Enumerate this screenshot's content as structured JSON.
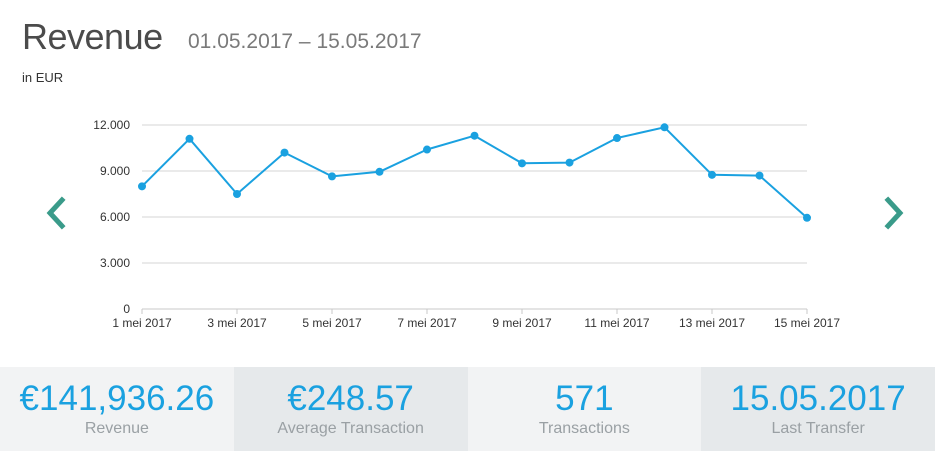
{
  "header": {
    "title": "Revenue",
    "date_range": "01.05.2017 – 15.05.2017",
    "unit": "in EUR"
  },
  "nav": {
    "prev_icon": "chevron-left-icon",
    "next_icon": "chevron-right-icon",
    "color": "#3a9b8a"
  },
  "chart_data": {
    "type": "line",
    "x": [
      "1 mei 2017",
      "2 mei 2017",
      "3 mei 2017",
      "4 mei 2017",
      "5 mei 2017",
      "6 mei 2017",
      "7 mei 2017",
      "8 mei 2017",
      "9 mei 2017",
      "10 mei 2017",
      "11 mei 2017",
      "12 mei 2017",
      "13 mei 2017",
      "14 mei 2017",
      "15 mei 2017"
    ],
    "x_tick_labels": [
      "1 mei 2017",
      "3 mei 2017",
      "5 mei 2017",
      "7 mei 2017",
      "9 mei 2017",
      "11 mei 2017",
      "13 mei 2017",
      "15 mei 2017"
    ],
    "y_tick_labels": [
      "0",
      "3.000",
      "6.000",
      "9.000",
      "12.000"
    ],
    "y_ticks": [
      0,
      3000,
      6000,
      9000,
      12000
    ],
    "ylim": [
      0,
      12000
    ],
    "series": [
      {
        "values": [
          8000,
          11100,
          7500,
          10200,
          8650,
          8950,
          10400,
          11300,
          9500,
          9550,
          11150,
          11850,
          8750,
          8700,
          5950
        ]
      }
    ],
    "line_color": "#1aa1e0",
    "grid": true,
    "title": "",
    "xlabel": "",
    "ylabel": ""
  },
  "stats": [
    {
      "value": "€141,936.26",
      "label": "Revenue"
    },
    {
      "value": "€248.57",
      "label": "Average Transaction"
    },
    {
      "value": "571",
      "label": "Transactions"
    },
    {
      "value": "15.05.2017",
      "label": "Last Transfer"
    }
  ]
}
